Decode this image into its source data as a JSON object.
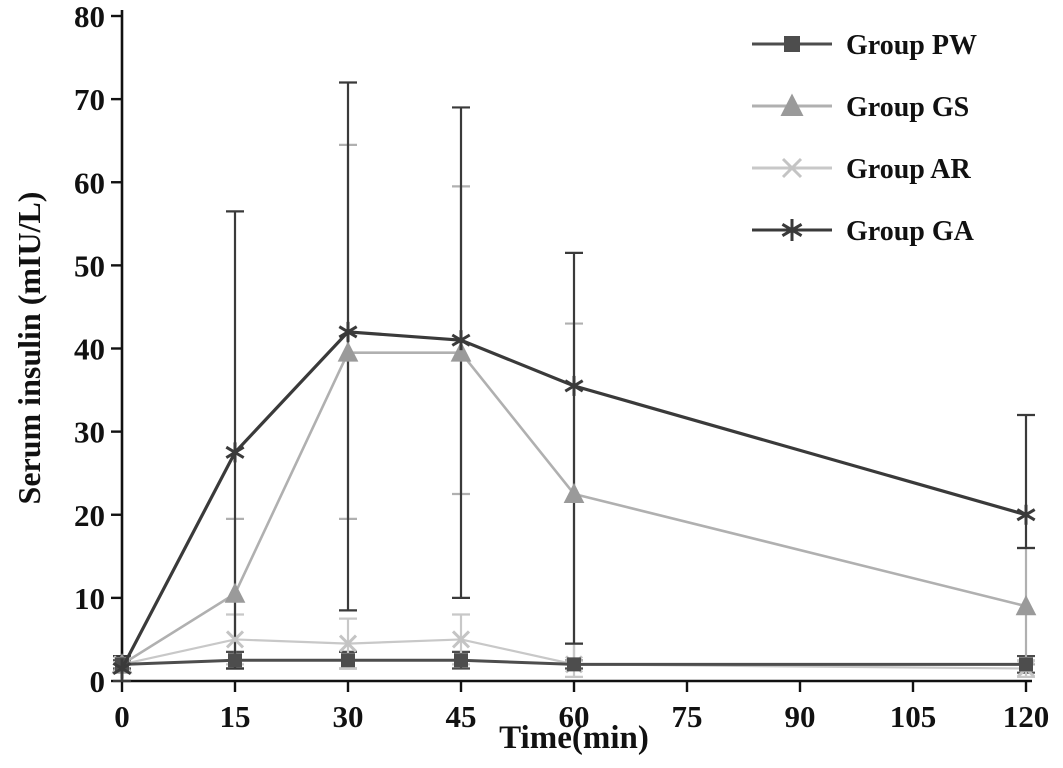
{
  "chart_data": {
    "type": "line",
    "title": "",
    "xlabel": "Time(min)",
    "ylabel": "Serum insulin (mIU/L)",
    "xlim": [
      0,
      120
    ],
    "ylim": [
      0,
      80
    ],
    "x_ticks": [
      0,
      15,
      30,
      45,
      60,
      75,
      90,
      105,
      120
    ],
    "y_ticks": [
      0,
      10,
      20,
      30,
      40,
      50,
      60,
      70,
      80
    ],
    "grid": false,
    "legend_position": "top-right",
    "x": [
      0,
      15,
      30,
      45,
      60,
      120
    ],
    "series": [
      {
        "name": "Group PW",
        "marker": "square",
        "color": "#4d4d4d",
        "line_color": "#4d4d4d",
        "values": [
          2,
          2.5,
          2.5,
          2.5,
          2,
          2
        ],
        "err_up": [
          0.5,
          1,
          1,
          1,
          0.5,
          1
        ],
        "err_down": [
          0.5,
          1,
          1,
          1,
          0.5,
          1
        ]
      },
      {
        "name": "Group GS",
        "marker": "triangle",
        "color": "#9a9a9a",
        "line_color": "#b0b0b0",
        "values": [
          2,
          10.5,
          39.5,
          39.5,
          22.5,
          9
        ],
        "err_up": [
          1,
          9,
          25,
          20,
          20.5,
          7
        ],
        "err_down": [
          1,
          9,
          20,
          17,
          20,
          7
        ]
      },
      {
        "name": "Group AR",
        "marker": "x",
        "color": "#c4c4c4",
        "line_color": "#c8c8c8",
        "values": [
          2,
          5,
          4.5,
          5,
          2,
          1.5
        ],
        "err_up": [
          1,
          3,
          3,
          3,
          2.5,
          1
        ],
        "err_down": [
          1,
          3,
          3,
          3,
          1.5,
          1
        ]
      },
      {
        "name": "Group GA",
        "marker": "asterisk",
        "color": "#3a3a3a",
        "line_color": "#3a3a3a",
        "values": [
          1.5,
          27.5,
          42,
          41,
          35.5,
          20
        ],
        "err_up": [
          1.5,
          29,
          30,
          28,
          16,
          12
        ],
        "err_down": [
          1.5,
          26,
          33.5,
          31,
          31,
          4
        ]
      }
    ]
  }
}
